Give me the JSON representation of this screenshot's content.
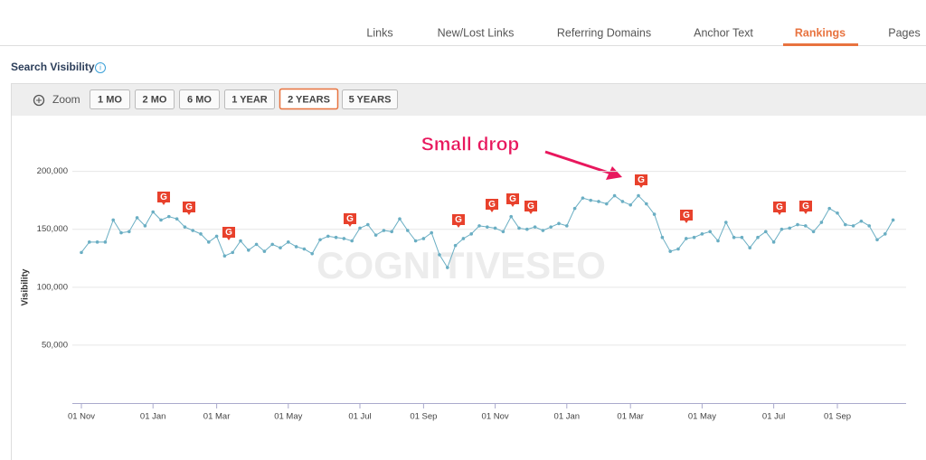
{
  "nav": {
    "tabs": [
      "Links",
      "New/Lost Links",
      "Referring Domains",
      "Anchor Text",
      "Rankings",
      "Pages"
    ]
  },
  "section_title": "Search Visibility",
  "toolbar": {
    "zoom_label": "Zoom",
    "buttons": [
      "1 MO",
      "2 MO",
      "6 MO",
      "1 YEAR",
      "2 YEARS",
      "5 YEARS"
    ]
  },
  "chart_data": {
    "type": "line",
    "ylabel": "Visibility",
    "watermark": "COGNITIVESEO",
    "annotation": "Small drop",
    "color": "#6aaec3",
    "grid": true,
    "ylim": [
      0,
      220000
    ],
    "yticks": [
      {
        "value": 50000,
        "label": "50,000"
      },
      {
        "value": 100000,
        "label": "100,000"
      },
      {
        "value": 150000,
        "label": "150,000"
      },
      {
        "value": 200000,
        "label": "200,000"
      }
    ],
    "categories": [
      "01 Nov",
      null,
      null,
      null,
      null,
      null,
      null,
      null,
      null,
      "01 Jan",
      null,
      null,
      null,
      null,
      null,
      null,
      null,
      "01 Mar",
      null,
      null,
      null,
      null,
      null,
      null,
      null,
      null,
      "01 May",
      null,
      null,
      null,
      null,
      null,
      null,
      null,
      null,
      "01 Jul",
      null,
      null,
      null,
      null,
      null,
      null,
      null,
      "01 Sep",
      null,
      null,
      null,
      null,
      null,
      null,
      null,
      null,
      "01 Nov",
      null,
      null,
      null,
      null,
      null,
      null,
      null,
      null,
      "01 Jan",
      null,
      null,
      null,
      null,
      null,
      null,
      null,
      "01 Mar",
      null,
      null,
      null,
      null,
      null,
      null,
      null,
      null,
      "01 May",
      null,
      null,
      null,
      null,
      null,
      null,
      null,
      null,
      "01 Jul",
      null,
      null,
      null,
      null,
      null,
      null,
      null,
      "01 Sep",
      null,
      null,
      null,
      null,
      null,
      null,
      null
    ],
    "values": [
      130000,
      139000,
      139000,
      139000,
      158000,
      147000,
      148000,
      160000,
      153000,
      165000,
      158000,
      161000,
      159000,
      152000,
      149000,
      146000,
      139000,
      144000,
      127000,
      130000,
      140000,
      132000,
      137000,
      131000,
      137000,
      134000,
      139000,
      135000,
      133000,
      129000,
      141000,
      144000,
      143000,
      142000,
      140000,
      151000,
      154000,
      145000,
      149000,
      148000,
      159000,
      149000,
      140000,
      142000,
      147000,
      128000,
      117000,
      136000,
      142000,
      146000,
      153000,
      152000,
      151000,
      148000,
      161000,
      151000,
      150000,
      152000,
      149000,
      152000,
      155000,
      153000,
      168000,
      177000,
      175000,
      174000,
      172000,
      179000,
      174000,
      171000,
      179000,
      172000,
      163000,
      143000,
      131000,
      133000,
      142000,
      143000,
      146000,
      148000,
      140000,
      156000,
      143000,
      143000,
      134000,
      143000,
      148000,
      139000,
      150000,
      151000,
      154000,
      153000,
      148000,
      156000,
      168000,
      164000,
      154000,
      153000,
      157000,
      153000,
      141000,
      146000,
      158000
    ]
  }
}
